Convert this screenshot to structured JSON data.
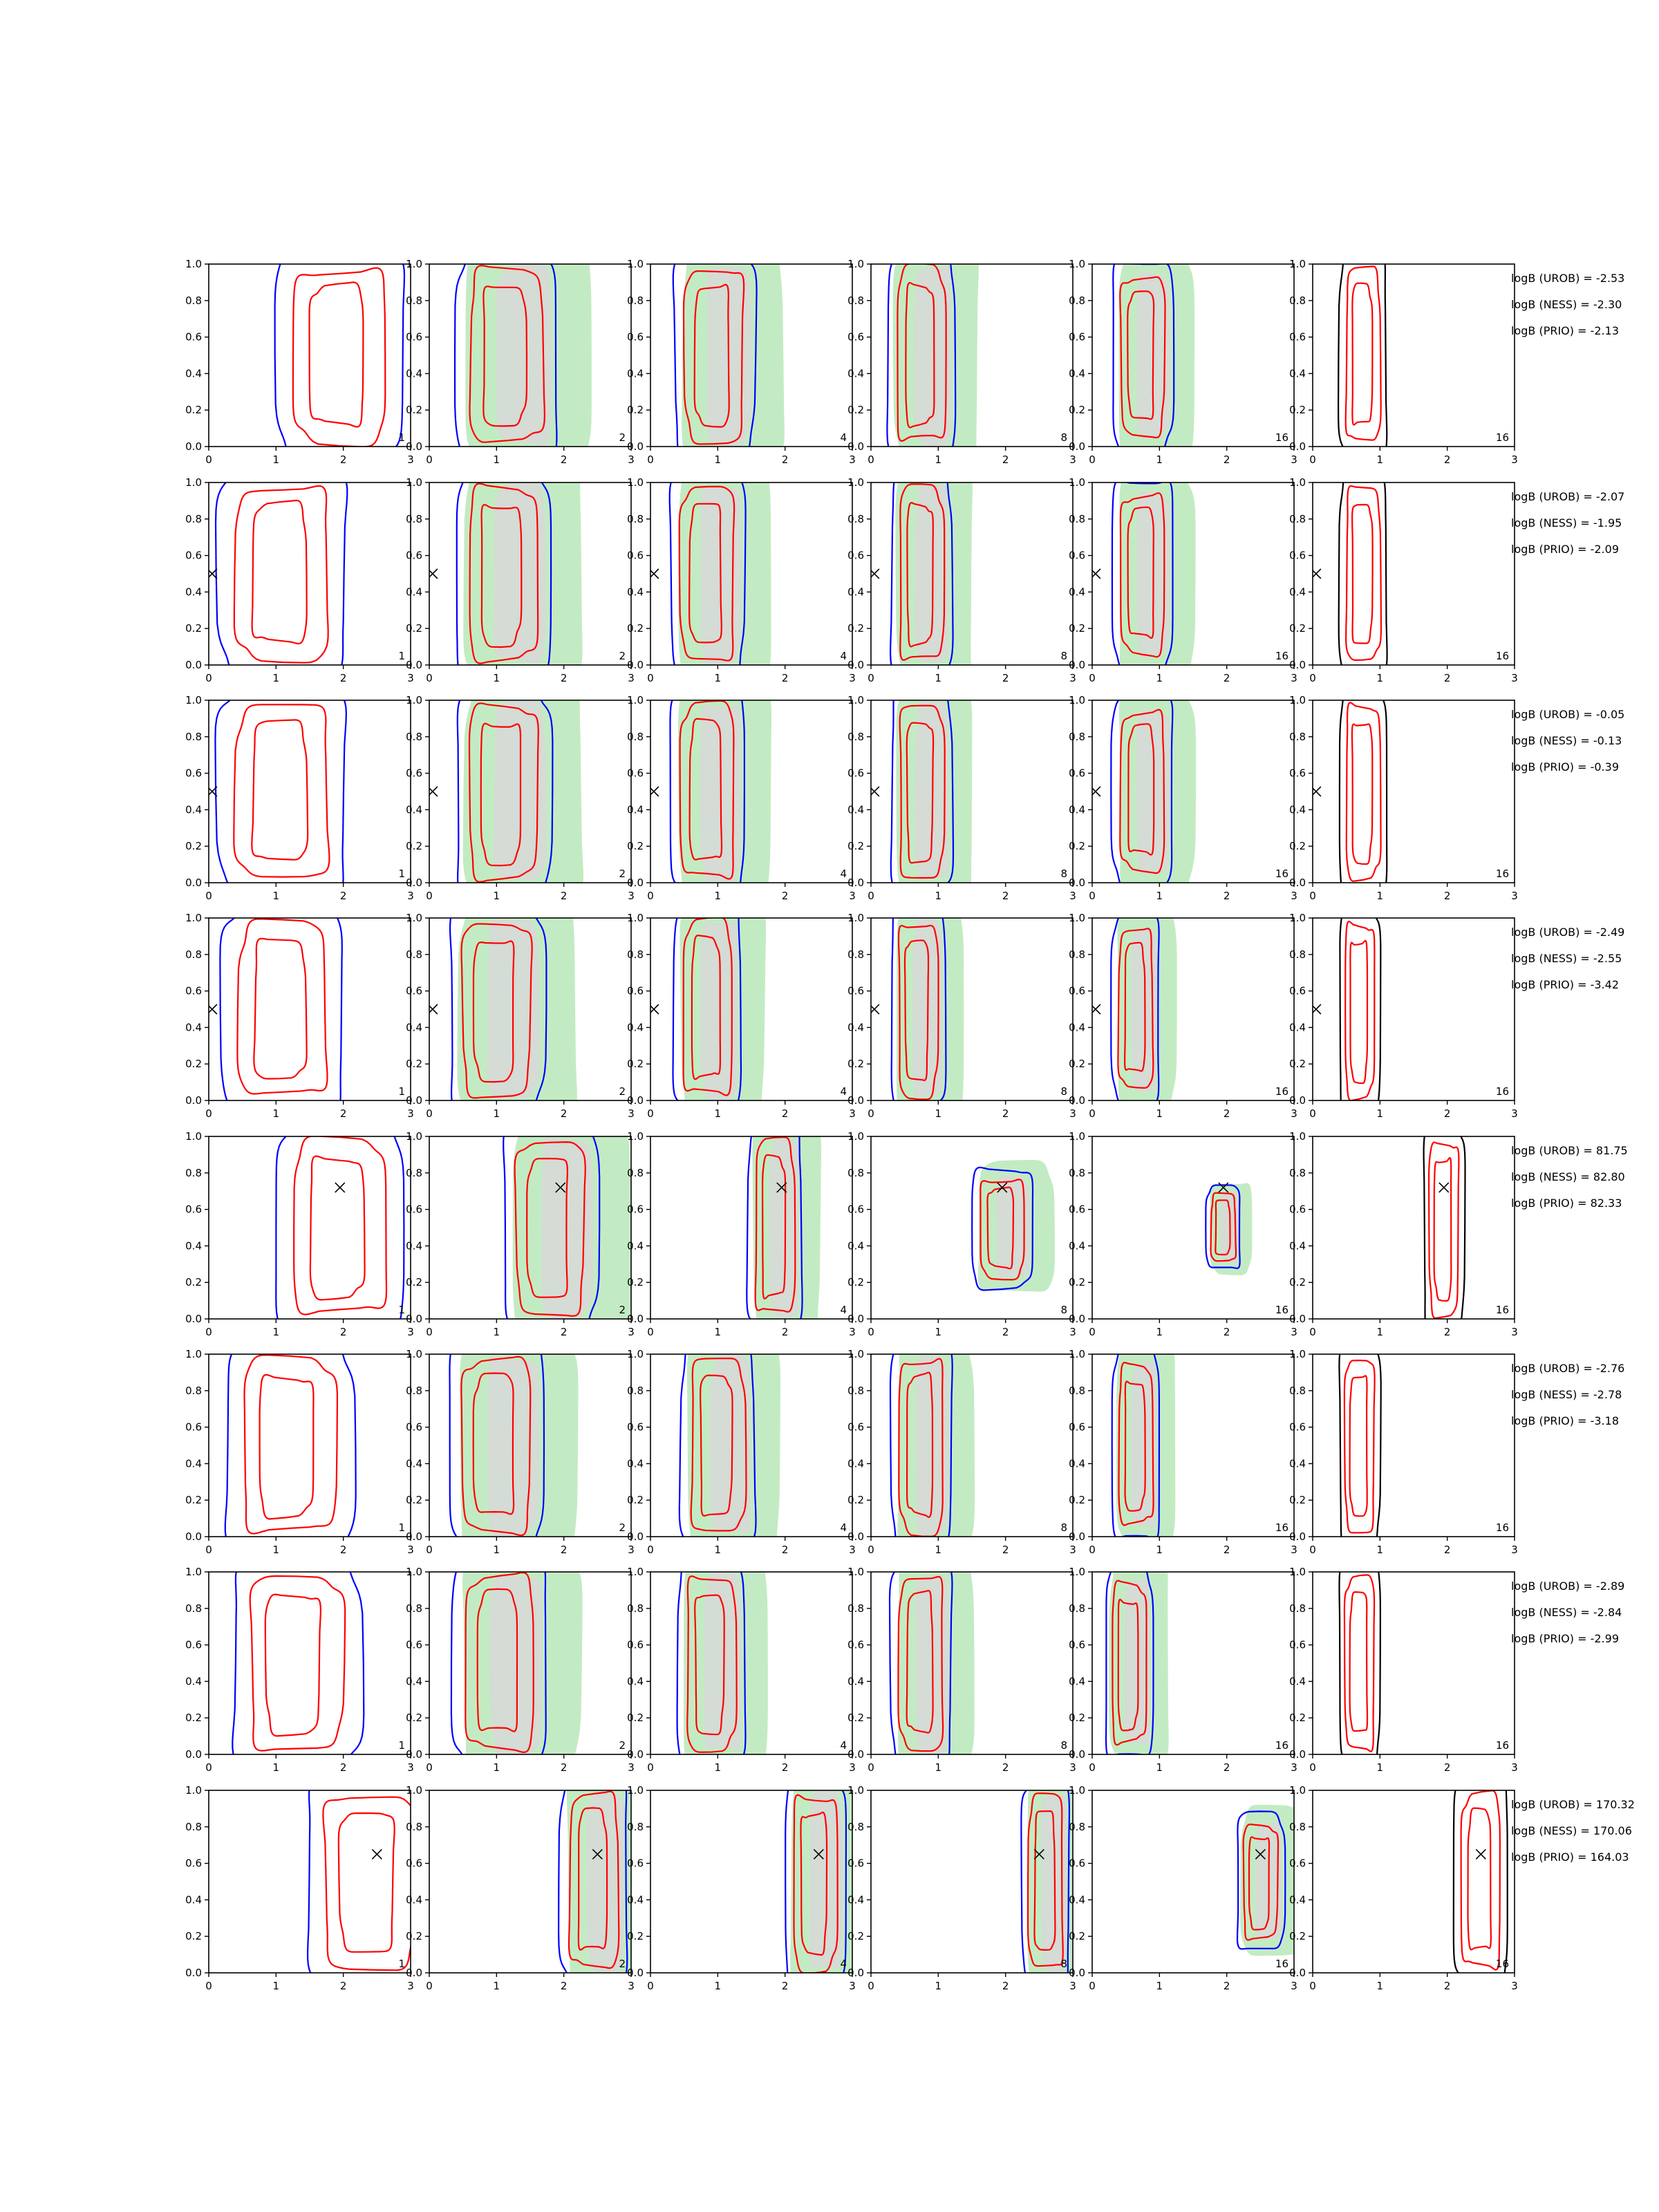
{
  "chart_data": {
    "type": "contour-grid",
    "title": "",
    "xlabel": "",
    "ylabel": "",
    "xlim": [
      0,
      3
    ],
    "ylim": [
      0,
      1
    ],
    "x_ticks": [
      "0",
      "1",
      "2",
      "3"
    ],
    "y_ticks": [
      "0.0",
      "0.2",
      "0.4",
      "0.6",
      "0.8",
      "1.0"
    ],
    "columns": [
      {
        "panel_label": "1",
        "contour_colors": [
          "#0000ff",
          "#ff0000"
        ],
        "green_fill": false
      },
      {
        "panel_label": "2",
        "contour_colors": [
          "#0000ff",
          "#ff0000"
        ],
        "green_fill": true
      },
      {
        "panel_label": "4",
        "contour_colors": [
          "#0000ff",
          "#ff0000"
        ],
        "green_fill": true
      },
      {
        "panel_label": "8",
        "contour_colors": [
          "#0000ff",
          "#ff0000"
        ],
        "green_fill": true
      },
      {
        "panel_label": "16",
        "contour_colors": [
          "#0000ff",
          "#ff0000"
        ],
        "green_fill": true
      },
      {
        "panel_label": "16",
        "contour_colors": [
          "#000000",
          "#ff0000"
        ],
        "green_fill": false
      }
    ],
    "colors": {
      "fill_green": "#c3ebc3",
      "fill_gray": "#d8d8d8",
      "blue": "#0000ff",
      "red": "#ff0000",
      "black": "#000000"
    },
    "rows": [
      {
        "marker": [
          -0.1,
          0.5
        ],
        "marker_visible": false,
        "logB": [
          "logB (UROB) = -2.53",
          "logB (NESS) = -2.30",
          "logB (PRIO) = -2.13"
        ],
        "centers": [
          1.95,
          1.15,
          0.95,
          0.75,
          0.75,
          0.75
        ],
        "widths": [
          1.9,
          1.5,
          1.2,
          1.0,
          0.9,
          0.7
        ],
        "heights": [
          1.0,
          1.0,
          1.0,
          1.0,
          0.9,
          1.0
        ]
      },
      {
        "marker": [
          0.05,
          0.5
        ],
        "marker_visible": true,
        "logB": [
          "logB (UROB) = -2.07",
          "logB (NESS) = -1.95",
          "logB (PRIO) = -2.09"
        ],
        "centers": [
          1.1,
          1.1,
          0.85,
          0.75,
          0.75,
          0.75
        ],
        "widths": [
          1.9,
          1.4,
          1.1,
          0.9,
          0.9,
          0.7
        ],
        "heights": [
          1.0,
          1.0,
          1.0,
          1.0,
          0.9,
          1.0
        ]
      },
      {
        "marker": [
          0.05,
          0.5
        ],
        "marker_visible": true,
        "logB": [
          "logB (UROB) = -0.05",
          "logB (NESS) = -0.13",
          "logB (PRIO) = -0.39"
        ],
        "centers": [
          1.1,
          1.1,
          0.85,
          0.75,
          0.75,
          0.75
        ],
        "widths": [
          1.9,
          1.4,
          1.1,
          0.9,
          0.9,
          0.7
        ],
        "heights": [
          1.0,
          1.0,
          1.0,
          1.0,
          0.9,
          1.0
        ]
      },
      {
        "marker": [
          0.05,
          0.5
        ],
        "marker_visible": true,
        "logB": [
          "logB (UROB) = -2.49",
          "logB (NESS) = -2.55",
          "logB (PRIO) = -3.42"
        ],
        "centers": [
          1.1,
          1.0,
          0.85,
          0.7,
          0.65,
          0.7
        ],
        "widths": [
          1.8,
          1.4,
          1.0,
          0.8,
          0.7,
          0.6
        ],
        "heights": [
          1.0,
          1.0,
          1.0,
          1.0,
          0.9,
          1.0
        ]
      },
      {
        "marker": [
          1.95,
          0.72
        ],
        "marker_visible": true,
        "logB": [
          "logB (UROB) = 81.75",
          "logB (NESS) = 82.80",
          "logB (PRIO) = 82.33"
        ],
        "centers": [
          1.95,
          1.8,
          1.85,
          1.95,
          1.95,
          1.95
        ],
        "widths": [
          1.9,
          1.4,
          0.8,
          0.9,
          0.5,
          0.6
        ],
        "heights": [
          1.0,
          1.0,
          1.0,
          0.5,
          0.3,
          1.0
        ]
      },
      {
        "marker": [
          -0.1,
          0.5
        ],
        "marker_visible": false,
        "logB": [
          "logB (UROB) = -2.76",
          "logB (NESS) = -2.78",
          "logB (PRIO) = -3.18"
        ],
        "centers": [
          1.2,
          1.0,
          1.0,
          0.75,
          0.65,
          0.7
        ],
        "widths": [
          1.9,
          1.4,
          1.1,
          0.9,
          0.7,
          0.6
        ],
        "heights": [
          1.0,
          1.0,
          1.0,
          1.0,
          0.9,
          1.0
        ]
      },
      {
        "marker": [
          -0.1,
          0.5
        ],
        "marker_visible": false,
        "logB": [
          "logB (UROB) = -2.89",
          "logB (NESS) = -2.84",
          "logB (PRIO) = -2.99"
        ],
        "centers": [
          1.3,
          1.05,
          0.9,
          0.75,
          0.55,
          0.7
        ],
        "widths": [
          1.9,
          1.4,
          1.0,
          0.9,
          0.7,
          0.6
        ],
        "heights": [
          1.0,
          1.0,
          1.0,
          1.0,
          0.9,
          1.0
        ]
      },
      {
        "marker": [
          2.5,
          0.65
        ],
        "marker_visible": true,
        "logB": [
          "logB (UROB) = 170.32",
          "logB (NESS) = 170.06",
          "logB (PRIO) = 164.03"
        ],
        "centers": [
          2.4,
          2.45,
          2.45,
          2.6,
          2.5,
          2.5
        ],
        "widths": [
          1.9,
          1.0,
          0.9,
          0.7,
          0.7,
          0.8
        ],
        "heights": [
          1.0,
          1.0,
          1.0,
          1.0,
          0.6,
          1.0
        ]
      }
    ]
  }
}
